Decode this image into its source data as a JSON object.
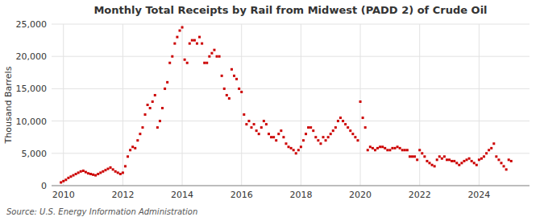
{
  "chart_data": {
    "type": "scatter",
    "title": "Monthly Total Receipts by Rail from Midwest (PADD 2) of Crude Oil",
    "ylabel": "Thousand Barrels",
    "source": "Source: U.S. Energy Information Administration",
    "color": "#cc0000",
    "marker": "square",
    "grid": true,
    "xlim": [
      2009.6,
      2025.7
    ],
    "xticks": [
      2010,
      2012,
      2014,
      2016,
      2018,
      2020,
      2022,
      2024
    ],
    "ylim": [
      0,
      25000
    ],
    "yticks": [
      0,
      {
        "value": 5000,
        "label": "5,000"
      },
      {
        "value": 10000,
        "label": "10,000"
      },
      {
        "value": 15000,
        "label": "15,000"
      },
      {
        "value": 20000,
        "label": "20,000"
      },
      {
        "value": 25000,
        "label": "25,000"
      }
    ],
    "x": [
      2009.917,
      2010.0,
      2010.083,
      2010.167,
      2010.25,
      2010.333,
      2010.417,
      2010.5,
      2010.583,
      2010.667,
      2010.75,
      2010.833,
      2010.917,
      2011.0,
      2011.083,
      2011.167,
      2011.25,
      2011.333,
      2011.417,
      2011.5,
      2011.583,
      2011.667,
      2011.75,
      2011.833,
      2011.917,
      2012.0,
      2012.083,
      2012.167,
      2012.25,
      2012.333,
      2012.417,
      2012.5,
      2012.583,
      2012.667,
      2012.75,
      2012.833,
      2012.917,
      2013.0,
      2013.083,
      2013.167,
      2013.25,
      2013.333,
      2013.417,
      2013.5,
      2013.583,
      2013.667,
      2013.75,
      2013.833,
      2013.917,
      2014.0,
      2014.083,
      2014.167,
      2014.25,
      2014.333,
      2014.417,
      2014.5,
      2014.583,
      2014.667,
      2014.75,
      2014.833,
      2014.917,
      2015.0,
      2015.083,
      2015.167,
      2015.25,
      2015.333,
      2015.417,
      2015.5,
      2015.583,
      2015.667,
      2015.75,
      2015.833,
      2015.917,
      2016.0,
      2016.083,
      2016.167,
      2016.25,
      2016.333,
      2016.417,
      2016.5,
      2016.583,
      2016.667,
      2016.75,
      2016.833,
      2016.917,
      2017.0,
      2017.083,
      2017.167,
      2017.25,
      2017.333,
      2017.417,
      2017.5,
      2017.583,
      2017.667,
      2017.75,
      2017.833,
      2017.917,
      2018.0,
      2018.083,
      2018.167,
      2018.25,
      2018.333,
      2018.417,
      2018.5,
      2018.583,
      2018.667,
      2018.75,
      2018.833,
      2018.917,
      2019.0,
      2019.083,
      2019.167,
      2019.25,
      2019.333,
      2019.417,
      2019.5,
      2019.583,
      2019.667,
      2019.75,
      2019.833,
      2019.917,
      2020.0,
      2020.083,
      2020.167,
      2020.25,
      2020.333,
      2020.417,
      2020.5,
      2020.583,
      2020.667,
      2020.75,
      2020.833,
      2020.917,
      2021.0,
      2021.083,
      2021.167,
      2021.25,
      2021.333,
      2021.417,
      2021.5,
      2021.583,
      2021.667,
      2021.75,
      2021.833,
      2021.917,
      2022.0,
      2022.083,
      2022.167,
      2022.25,
      2022.333,
      2022.417,
      2022.5,
      2022.583,
      2022.667,
      2022.75,
      2022.833,
      2022.917,
      2023.0,
      2023.083,
      2023.167,
      2023.25,
      2023.333,
      2023.417,
      2023.5,
      2023.583,
      2023.667,
      2023.75,
      2023.833,
      2023.917,
      2024.0,
      2024.083,
      2024.167,
      2024.25,
      2024.333,
      2024.417,
      2024.5,
      2024.583,
      2024.667,
      2024.75,
      2024.833,
      2024.917,
      2025.0,
      2025.083
    ],
    "values": [
      500,
      700,
      900,
      1200,
      1400,
      1600,
      1800,
      2000,
      2200,
      2300,
      2100,
      1900,
      1800,
      1700,
      1600,
      1800,
      2000,
      2200,
      2400,
      2600,
      2800,
      2500,
      2200,
      2000,
      1800,
      2000,
      3000,
      4500,
      5500,
      6000,
      5800,
      7000,
      8000,
      9000,
      11000,
      12500,
      12000,
      13000,
      14000,
      9000,
      10000,
      12000,
      15000,
      16000,
      19000,
      20000,
      22000,
      23000,
      24000,
      24500,
      19500,
      19000,
      22000,
      22500,
      22500,
      22000,
      23000,
      22000,
      19000,
      19000,
      20000,
      20500,
      21000,
      20000,
      20000,
      17000,
      15000,
      14000,
      13500,
      18000,
      17000,
      16500,
      15000,
      14500,
      11000,
      9500,
      10000,
      9000,
      9500,
      8500,
      8000,
      9000,
      10000,
      9500,
      8000,
      7500,
      7500,
      7000,
      8000,
      8500,
      7500,
      6500,
      6000,
      5800,
      5500,
      5000,
      5500,
      6000,
      7000,
      8000,
      9000,
      9000,
      8500,
      7500,
      7000,
      6500,
      7500,
      7000,
      7500,
      8000,
      8500,
      9000,
      10000,
      10500,
      10000,
      9500,
      9000,
      8500,
      8000,
      7500,
      7000,
      13000,
      10500,
      9000,
      5500,
      6000,
      5800,
      5500,
      5800,
      6000,
      6000,
      5800,
      5500,
      5500,
      5800,
      5800,
      6000,
      5800,
      5500,
      5500,
      5500,
      4500,
      4500,
      4500,
      4000,
      5500,
      5000,
      4500,
      3800,
      3500,
      3200,
      3000,
      4000,
      4500,
      4200,
      4500,
      4000,
      4000,
      3800,
      3800,
      3500,
      3200,
      3500,
      3800,
      4000,
      4200,
      3800,
      3500,
      3200,
      4000,
      4200,
      4500,
      5000,
      5500,
      5800,
      6500,
      4500,
      4000,
      3500,
      3000,
      2500,
      4000,
      3800
    ]
  }
}
